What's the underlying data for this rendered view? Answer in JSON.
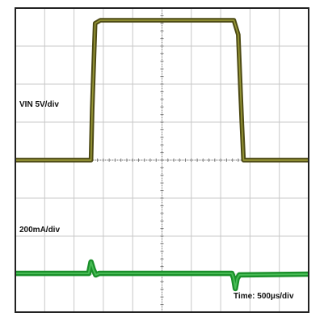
{
  "chart_data": {
    "type": "line",
    "x_divisions": 10,
    "y_divisions": 8,
    "grid": true,
    "time_label": "Time: 500µs/div",
    "colors": {
      "frame": "#222222",
      "grid": "#c8c8c8",
      "axis": "#777777"
    },
    "series": [
      {
        "label": "VIN 5V/div",
        "color": "#4d4a14",
        "highlight": "#a0a03a",
        "thickness_div": 0.12,
        "ylim": [
          0,
          8
        ],
        "points": [
          [
            0.0,
            4.0
          ],
          [
            2.58,
            4.0
          ],
          [
            2.62,
            5.35
          ],
          [
            2.72,
            7.6
          ],
          [
            2.9,
            7.68
          ],
          [
            7.45,
            7.68
          ],
          [
            7.6,
            7.3
          ],
          [
            7.72,
            5.0
          ],
          [
            7.78,
            4.0
          ],
          [
            10.0,
            4.0
          ]
        ]
      },
      {
        "label": "200mA/div",
        "color": "#1a8f2a",
        "highlight": "#4cc25a",
        "thickness_div": 0.14,
        "ylim": [
          0,
          8
        ],
        "points": [
          [
            0.0,
            1.02
          ],
          [
            2.5,
            1.02
          ],
          [
            2.58,
            1.32
          ],
          [
            2.66,
            1.12
          ],
          [
            2.74,
            0.98
          ],
          [
            2.86,
            1.02
          ],
          [
            7.38,
            1.02
          ],
          [
            7.44,
            0.9
          ],
          [
            7.5,
            0.62
          ],
          [
            7.56,
            0.88
          ],
          [
            7.64,
            0.98
          ],
          [
            10.0,
            1.0
          ]
        ]
      }
    ]
  }
}
